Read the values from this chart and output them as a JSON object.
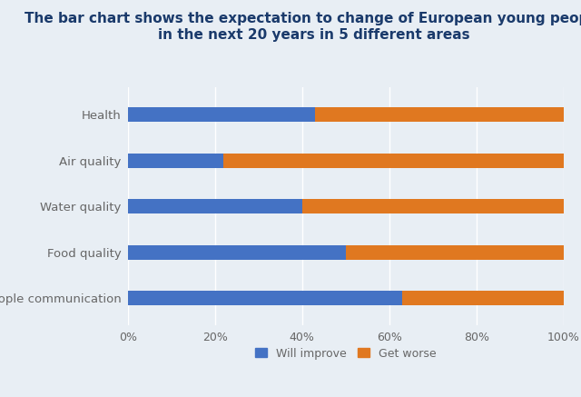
{
  "categories": [
    "Health",
    "Air quality",
    "Water quality",
    "Food quality",
    "People communication"
  ],
  "will_improve": [
    43,
    22,
    40,
    50,
    63
  ],
  "get_worse": [
    57,
    78,
    60,
    50,
    37
  ],
  "color_improve": "#4472C4",
  "color_worse": "#E07820",
  "title_line1": "The bar chart shows the expectation to change of European young people",
  "title_line2": "in the next 20 years in 5 different areas",
  "background_color": "#E8EEF4",
  "legend_improve": "Will improve",
  "legend_worse": "Get worse",
  "xlim": [
    0,
    100
  ],
  "xticks": [
    0,
    20,
    40,
    60,
    80,
    100
  ],
  "xtick_labels": [
    "0%",
    "20%",
    "40%",
    "60%",
    "80%",
    "100%"
  ],
  "bar_height": 0.32,
  "title_fontsize": 11,
  "label_fontsize": 9.5,
  "tick_fontsize": 9
}
